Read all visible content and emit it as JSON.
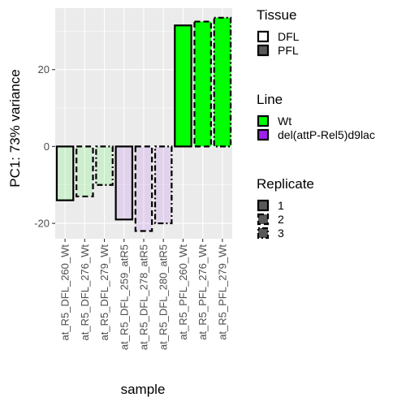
{
  "chart_data": {
    "type": "bar",
    "xlabel": "sample",
    "ylabel": "PC1: 73% variance",
    "ylim": [
      -24,
      36
    ],
    "yticks": [
      -20,
      0,
      20
    ],
    "grid": true,
    "legend_position": "right",
    "categories": [
      "at_R5_DFL_260_Wt",
      "at_R5_DFL_276_Wt",
      "at_R5_DFL_279_Wt",
      "at_R5_DFL_259_atR5",
      "at_R5_DFL_278_atR5",
      "at_R5_DFL_280_atR5",
      "at_R5_PFL_260_Wt",
      "at_R5_PFL_276_Wt",
      "at_R5_PFL_279_Wt"
    ],
    "values": [
      -14,
      -13,
      -10,
      -19,
      -22,
      -20,
      31.5,
      32.5,
      33.5
    ],
    "tissue": [
      "DFL",
      "DFL",
      "DFL",
      "DFL",
      "DFL",
      "DFL",
      "PFL",
      "PFL",
      "PFL"
    ],
    "line": [
      "Wt",
      "Wt",
      "Wt",
      "del(attP-Rel5)d9lac",
      "del(attP-Rel5)d9lac",
      "del(attP-Rel5)d9lac",
      "Wt",
      "Wt",
      "Wt"
    ],
    "replicate": [
      "1",
      "2",
      "3",
      "1",
      "2",
      "3",
      "1",
      "2",
      "3"
    ],
    "legends": [
      {
        "title": "Tissue",
        "entries": [
          {
            "label": "DFL",
            "fill": "#ffffff",
            "dash": "solid"
          },
          {
            "label": "PFL",
            "fill": "#595959",
            "dash": "solid"
          }
        ]
      },
      {
        "title": "Line",
        "entries": [
          {
            "label": "Wt",
            "fill": "#00ff00",
            "dash": "solid"
          },
          {
            "label": "del(attP-Rel5)d9lac",
            "fill": "#a020f0",
            "dash": "solid"
          }
        ]
      },
      {
        "title": "Replicate",
        "entries": [
          {
            "label": "1",
            "fill": "#595959",
            "dash": "solid"
          },
          {
            "label": "2",
            "fill": "#595959",
            "dash": "dashed"
          },
          {
            "label": "3",
            "fill": "#595959",
            "dash": "dotdash"
          }
        ]
      }
    ],
    "colors": {
      "Wt": "#00ff00",
      "del(attP-Rel5)d9lac": "#a020f0",
      "panel_background": "#ebebeb",
      "grid": "#ffffff",
      "outline": "#000000"
    }
  }
}
